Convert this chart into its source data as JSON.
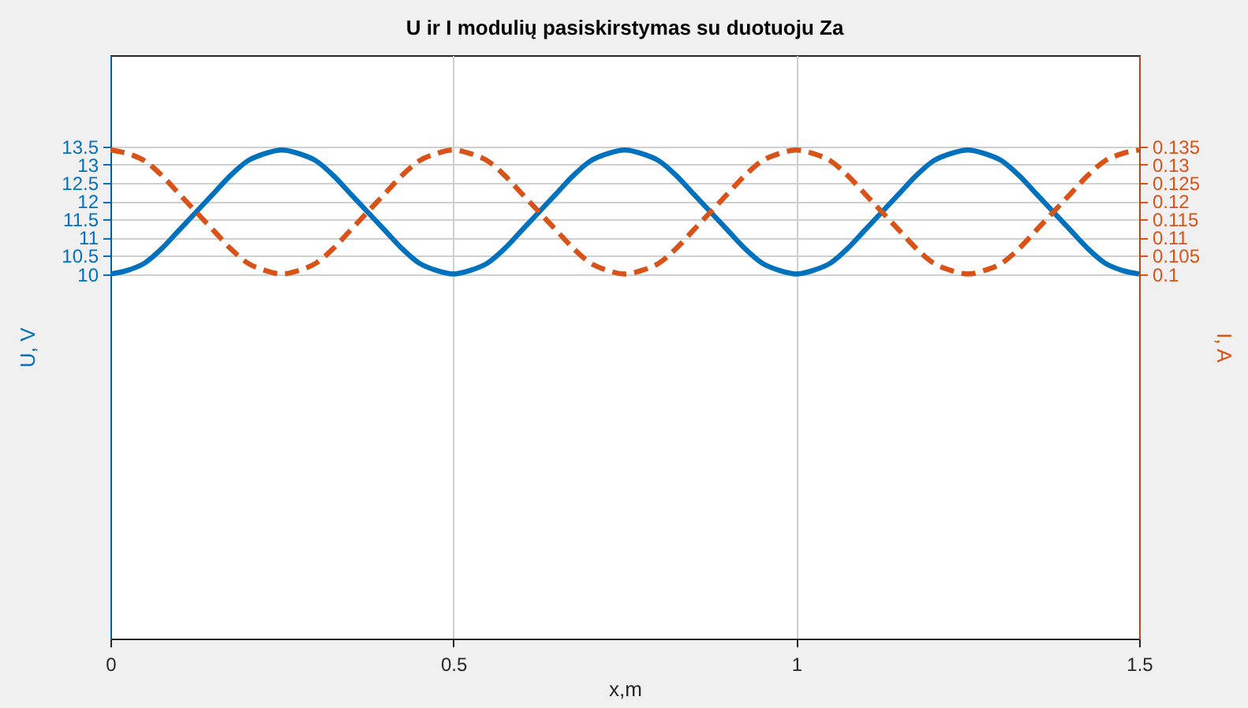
{
  "chart_data": {
    "type": "line",
    "title": "U ir I modulių pasiskirstymas su duotuoju Za",
    "xlabel": "x,m",
    "ylabel": "U, V",
    "y2label": "I, A",
    "x": [
      0,
      0.025,
      0.05,
      0.075,
      0.1,
      0.125,
      0.15,
      0.175,
      0.2,
      0.225,
      0.25,
      0.275,
      0.3,
      0.325,
      0.35,
      0.375,
      0.4,
      0.425,
      0.45,
      0.475,
      0.5,
      0.525,
      0.55,
      0.575,
      0.6,
      0.625,
      0.65,
      0.675,
      0.7,
      0.725,
      0.75,
      0.775,
      0.8,
      0.825,
      0.85,
      0.875,
      0.9,
      0.925,
      0.95,
      0.975,
      1,
      1.025,
      1.05,
      1.075,
      1.1,
      1.125,
      1.15,
      1.175,
      1.2,
      1.225,
      1.25,
      1.275,
      1.3,
      1.325,
      1.35,
      1.375,
      1.4,
      1.425,
      1.45,
      1.475,
      1.5
    ],
    "series": [
      {
        "color": "#0072bd",
        "line_style": "solid",
        "values": [
          10,
          10.1,
          10.3,
          10.7,
          11.2,
          11.7,
          12.2,
          12.7,
          13.1,
          13.3,
          13.4,
          13.3,
          13.1,
          12.7,
          12.2,
          11.7,
          11.2,
          10.7,
          10.3,
          10.1,
          10,
          10.1,
          10.3,
          10.7,
          11.2,
          11.7,
          12.2,
          12.7,
          13.1,
          13.3,
          13.4,
          13.3,
          13.1,
          12.7,
          12.2,
          11.7,
          11.2,
          10.7,
          10.3,
          10.1,
          10,
          10.1,
          10.3,
          10.7,
          11.2,
          11.7,
          12.2,
          12.7,
          13.1,
          13.3,
          13.4,
          13.3,
          13.1,
          12.7,
          12.2,
          11.7,
          11.2,
          10.7,
          10.3,
          10.1,
          10
        ]
      },
      {
        "color": "#d95319",
        "line_style": "dashed",
        "axis": "y2",
        "values": [
          0.134,
          0.133,
          0.131,
          0.127,
          0.122,
          0.117,
          0.112,
          0.107,
          0.103,
          0.101,
          0.1,
          0.101,
          0.103,
          0.107,
          0.112,
          0.117,
          0.122,
          0.127,
          0.131,
          0.133,
          0.134,
          0.133,
          0.131,
          0.127,
          0.122,
          0.117,
          0.112,
          0.107,
          0.103,
          0.101,
          0.1,
          0.101,
          0.103,
          0.107,
          0.112,
          0.117,
          0.122,
          0.127,
          0.131,
          0.133,
          0.134,
          0.133,
          0.131,
          0.127,
          0.122,
          0.117,
          0.112,
          0.107,
          0.103,
          0.101,
          0.1,
          0.101,
          0.103,
          0.107,
          0.112,
          0.117,
          0.122,
          0.127,
          0.131,
          0.133,
          0.134
        ]
      }
    ],
    "xlim": [
      0,
      1.5
    ],
    "xticks": [
      0,
      0.5,
      1,
      1.5
    ],
    "ylim": [
      0,
      16
    ],
    "yticks": [
      10,
      10.5,
      11,
      11.5,
      12,
      12.5,
      13,
      13.5
    ],
    "y2lim": [
      0,
      0.16
    ],
    "y2ticks": [
      0.1,
      0.105,
      0.11,
      0.115,
      0.12,
      0.125,
      0.13,
      0.135
    ],
    "grid": true
  }
}
